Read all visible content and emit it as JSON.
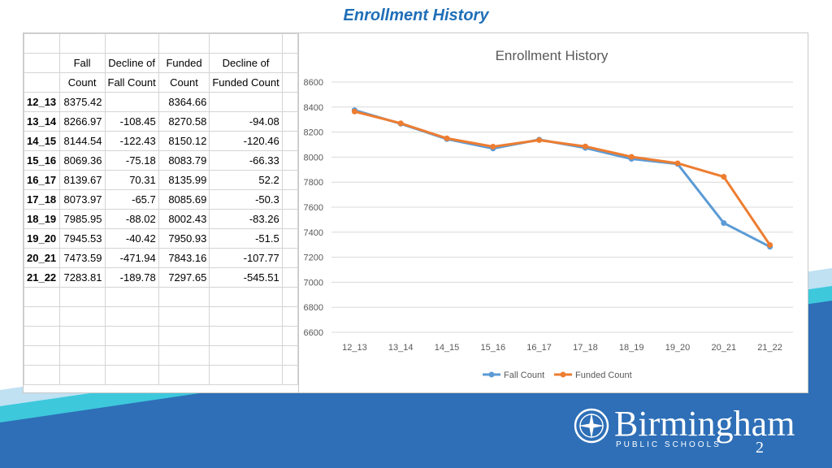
{
  "slide": {
    "title": "Enrollment History",
    "page_number": "2"
  },
  "logo": {
    "name": "Birmingham",
    "subtitle": "PUBLIC SCHOOLS"
  },
  "colors": {
    "fall_count": "#5b9bd5",
    "funded_count": "#ed7d31",
    "band_blue": "#2e6fb7",
    "band_cyan": "#3dc8dc",
    "band_light": "#bfe1f2",
    "title": "#1f6fb8"
  },
  "table": {
    "headers_line1": [
      "Fall",
      "Decline of",
      "Funded",
      "Decline of"
    ],
    "headers_line2": [
      "Count",
      "Fall Count",
      "Count",
      "Funded Count"
    ],
    "rows": [
      {
        "label": "12_13",
        "fall": "8375.42",
        "fall_decline": "",
        "funded": "8364.66",
        "funded_decline": ""
      },
      {
        "label": "13_14",
        "fall": "8266.97",
        "fall_decline": "-108.45",
        "funded": "8270.58",
        "funded_decline": "-94.08"
      },
      {
        "label": "14_15",
        "fall": "8144.54",
        "fall_decline": "-122.43",
        "funded": "8150.12",
        "funded_decline": "-120.46"
      },
      {
        "label": "15_16",
        "fall": "8069.36",
        "fall_decline": "-75.18",
        "funded": "8083.79",
        "funded_decline": "-66.33"
      },
      {
        "label": "16_17",
        "fall": "8139.67",
        "fall_decline": "70.31",
        "funded": "8135.99",
        "funded_decline": "52.2"
      },
      {
        "label": "17_18",
        "fall": "8073.97",
        "fall_decline": "-65.7",
        "funded": "8085.69",
        "funded_decline": "-50.3"
      },
      {
        "label": "18_19",
        "fall": "7985.95",
        "fall_decline": "-88.02",
        "funded": "8002.43",
        "funded_decline": "-83.26"
      },
      {
        "label": "19_20",
        "fall": "7945.53",
        "fall_decline": "-40.42",
        "funded": "7950.93",
        "funded_decline": "-51.5"
      },
      {
        "label": "20_21",
        "fall": "7473.59",
        "fall_decline": "-471.94",
        "funded": "7843.16",
        "funded_decline": "-107.77"
      },
      {
        "label": "21_22",
        "fall": "7283.81",
        "fall_decline": "-189.78",
        "funded": "7297.65",
        "funded_decline": "-545.51"
      }
    ]
  },
  "chart_data": {
    "type": "line",
    "title": "Enrollment History",
    "categories": [
      "12_13",
      "13_14",
      "14_15",
      "15_16",
      "16_17",
      "17_18",
      "18_19",
      "19_20",
      "20_21",
      "21_22"
    ],
    "series": [
      {
        "name": "Fall Count",
        "color": "#5b9bd5",
        "values": [
          8375.42,
          8266.97,
          8144.54,
          8069.36,
          8139.67,
          8073.97,
          7985.95,
          7945.53,
          7473.59,
          7283.81
        ]
      },
      {
        "name": "Funded Count",
        "color": "#ed7d31",
        "values": [
          8364.66,
          8270.58,
          8150.12,
          8083.79,
          8135.99,
          8085.69,
          8002.43,
          7950.93,
          7843.16,
          7297.65
        ]
      }
    ],
    "ylim": [
      6600,
      8600
    ],
    "yticks": [
      6600,
      6800,
      7000,
      7200,
      7400,
      7600,
      7800,
      8000,
      8200,
      8400,
      8600
    ],
    "grid": true,
    "legend": "bottom"
  }
}
